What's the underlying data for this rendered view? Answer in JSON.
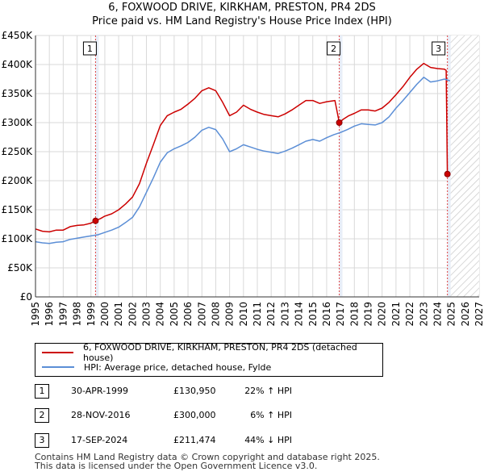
{
  "header": {
    "title_line1": "6, FOXWOOD DRIVE, KIRKHAM, PRESTON, PR4 2DS",
    "title_line2": "Price paid vs. HM Land Registry's House Price Index (HPI)"
  },
  "chart_data": {
    "type": "line",
    "xlim": [
      1995,
      2027
    ],
    "ylim": [
      0,
      450000
    ],
    "x_ticks": [
      1995,
      1996,
      1997,
      1998,
      1999,
      2000,
      2001,
      2002,
      2003,
      2004,
      2005,
      2006,
      2007,
      2008,
      2009,
      2010,
      2011,
      2012,
      2013,
      2014,
      2015,
      2016,
      2017,
      2018,
      2019,
      2020,
      2021,
      2022,
      2023,
      2024,
      2025,
      2026,
      2027
    ],
    "y_ticks": [
      {
        "value": 0,
        "label": "£0"
      },
      {
        "value": 50000,
        "label": "£50K"
      },
      {
        "value": 100000,
        "label": "£100K"
      },
      {
        "value": 150000,
        "label": "£150K"
      },
      {
        "value": 200000,
        "label": "£200K"
      },
      {
        "value": 250000,
        "label": "£250K"
      },
      {
        "value": 300000,
        "label": "£300K"
      },
      {
        "value": 350000,
        "label": "£350K"
      },
      {
        "value": 400000,
        "label": "£400K"
      },
      {
        "value": 450000,
        "label": "£450K"
      }
    ],
    "grid": true,
    "hatched_future_from": 2024.9,
    "colors": {
      "property": "#cc0000",
      "hpi": "#5b8ed6",
      "marker_line": "#dd4444",
      "shade": "#e8eef8"
    },
    "series": [
      {
        "name": "6, FOXWOOD DRIVE, KIRKHAM, PRESTON, PR4 2DS (detached house)",
        "color": "#cc0000",
        "points": [
          [
            1995.0,
            117000
          ],
          [
            1995.5,
            113000
          ],
          [
            1996.0,
            112000
          ],
          [
            1996.5,
            115000
          ],
          [
            1997.0,
            115000
          ],
          [
            1997.5,
            121000
          ],
          [
            1998.0,
            123000
          ],
          [
            1998.5,
            124000
          ],
          [
            1999.0,
            127000
          ],
          [
            1999.33,
            130950
          ],
          [
            1999.7,
            135000
          ],
          [
            2000.0,
            139000
          ],
          [
            2000.5,
            143000
          ],
          [
            2001.0,
            150000
          ],
          [
            2001.5,
            160000
          ],
          [
            2002.0,
            172000
          ],
          [
            2002.5,
            195000
          ],
          [
            2003.0,
            230000
          ],
          [
            2003.5,
            262000
          ],
          [
            2004.0,
            295000
          ],
          [
            2004.5,
            312000
          ],
          [
            2005.0,
            318000
          ],
          [
            2005.5,
            323000
          ],
          [
            2006.0,
            332000
          ],
          [
            2006.5,
            342000
          ],
          [
            2007.0,
            355000
          ],
          [
            2007.5,
            360000
          ],
          [
            2008.0,
            355000
          ],
          [
            2008.5,
            335000
          ],
          [
            2009.0,
            312000
          ],
          [
            2009.5,
            318000
          ],
          [
            2010.0,
            330000
          ],
          [
            2010.5,
            323000
          ],
          [
            2011.0,
            318000
          ],
          [
            2011.5,
            314000
          ],
          [
            2012.0,
            312000
          ],
          [
            2012.5,
            310000
          ],
          [
            2013.0,
            315000
          ],
          [
            2013.5,
            322000
          ],
          [
            2014.0,
            330000
          ],
          [
            2014.5,
            338000
          ],
          [
            2015.0,
            338000
          ],
          [
            2015.5,
            333000
          ],
          [
            2016.0,
            336000
          ],
          [
            2016.6,
            338000
          ],
          [
            2016.91,
            300000
          ],
          [
            2017.2,
            306000
          ],
          [
            2017.6,
            312000
          ],
          [
            2018.0,
            316000
          ],
          [
            2018.5,
            322000
          ],
          [
            2019.0,
            322000
          ],
          [
            2019.5,
            320000
          ],
          [
            2020.0,
            325000
          ],
          [
            2020.5,
            335000
          ],
          [
            2021.0,
            348000
          ],
          [
            2021.5,
            362000
          ],
          [
            2022.0,
            378000
          ],
          [
            2022.5,
            392000
          ],
          [
            2023.0,
            402000
          ],
          [
            2023.5,
            395000
          ],
          [
            2024.0,
            393000
          ],
          [
            2024.5,
            392000
          ],
          [
            2024.62,
            390000
          ],
          [
            2024.71,
            211474
          ]
        ]
      },
      {
        "name": "HPI: Average price, detached house, Fylde",
        "color": "#5b8ed6",
        "points": [
          [
            1995.0,
            95000
          ],
          [
            1995.5,
            93000
          ],
          [
            1996.0,
            92000
          ],
          [
            1996.5,
            94000
          ],
          [
            1997.0,
            95000
          ],
          [
            1997.5,
            99000
          ],
          [
            1998.0,
            101000
          ],
          [
            1998.5,
            103000
          ],
          [
            1999.0,
            105000
          ],
          [
            1999.5,
            107000
          ],
          [
            2000.0,
            111000
          ],
          [
            2000.5,
            115000
          ],
          [
            2001.0,
            120000
          ],
          [
            2001.5,
            128000
          ],
          [
            2002.0,
            137000
          ],
          [
            2002.5,
            155000
          ],
          [
            2003.0,
            180000
          ],
          [
            2003.5,
            205000
          ],
          [
            2004.0,
            232000
          ],
          [
            2004.5,
            248000
          ],
          [
            2005.0,
            255000
          ],
          [
            2005.5,
            260000
          ],
          [
            2006.0,
            266000
          ],
          [
            2006.5,
            275000
          ],
          [
            2007.0,
            287000
          ],
          [
            2007.5,
            292000
          ],
          [
            2008.0,
            288000
          ],
          [
            2008.5,
            272000
          ],
          [
            2009.0,
            250000
          ],
          [
            2009.5,
            255000
          ],
          [
            2010.0,
            262000
          ],
          [
            2010.5,
            258000
          ],
          [
            2011.0,
            254000
          ],
          [
            2011.5,
            251000
          ],
          [
            2012.0,
            249000
          ],
          [
            2012.5,
            247000
          ],
          [
            2013.0,
            251000
          ],
          [
            2013.5,
            256000
          ],
          [
            2014.0,
            262000
          ],
          [
            2014.5,
            268000
          ],
          [
            2015.0,
            271000
          ],
          [
            2015.5,
            268000
          ],
          [
            2016.0,
            274000
          ],
          [
            2016.5,
            279000
          ],
          [
            2017.0,
            283000
          ],
          [
            2017.5,
            288000
          ],
          [
            2018.0,
            294000
          ],
          [
            2018.5,
            298000
          ],
          [
            2019.0,
            297000
          ],
          [
            2019.5,
            296000
          ],
          [
            2020.0,
            300000
          ],
          [
            2020.5,
            310000
          ],
          [
            2021.0,
            325000
          ],
          [
            2021.5,
            338000
          ],
          [
            2022.0,
            352000
          ],
          [
            2022.5,
            366000
          ],
          [
            2023.0,
            378000
          ],
          [
            2023.5,
            370000
          ],
          [
            2024.0,
            372000
          ],
          [
            2024.5,
            375000
          ],
          [
            2024.9,
            372000
          ]
        ]
      }
    ],
    "sales": [
      {
        "n": "1",
        "x": 1999.33,
        "y": 130950
      },
      {
        "n": "2",
        "x": 2016.91,
        "y": 300000
      },
      {
        "n": "3",
        "x": 2024.71,
        "y": 211474
      }
    ]
  },
  "legend": {
    "property_label": "6, FOXWOOD DRIVE, KIRKHAM, PRESTON, PR4 2DS (detached house)",
    "hpi_label": "HPI: Average price, detached house, Fylde"
  },
  "transactions": [
    {
      "n": "1",
      "date": "30-APR-1999",
      "price": "£130,950",
      "hpi": "22% ↑ HPI"
    },
    {
      "n": "2",
      "date": "28-NOV-2016",
      "price": "£300,000",
      "hpi": "6% ↑ HPI"
    },
    {
      "n": "3",
      "date": "17-SEP-2024",
      "price": "£211,474",
      "hpi": "44% ↓ HPI"
    }
  ],
  "footer": {
    "line1": "Contains HM Land Registry data © Crown copyright and database right 2025.",
    "line2": "This data is licensed under the Open Government Licence v3.0."
  }
}
